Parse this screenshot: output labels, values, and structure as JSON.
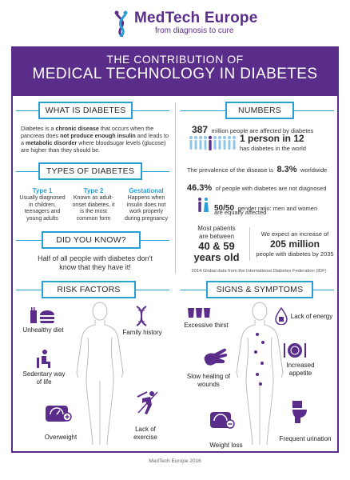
{
  "logo": {
    "name": "MedTech Europe",
    "tagline": "from diagnosis to cure"
  },
  "banner": {
    "line1": "THE CONTRIBUTION OF",
    "line2": "MEDICAL TECHNOLOGY IN DIABETES"
  },
  "what": {
    "heading": "WHAT IS DIABETES",
    "text": "Diabetes is a chronic disease that occurs when the pancreas does not produce enough insulin and leads to a metabolic disorder where bloodsugar levels (glucose) are higher than they should be."
  },
  "types": {
    "heading": "TYPES OF DIABETES",
    "items": [
      {
        "title": "Type 1",
        "desc": "Usually diagnosed in children, teenagers and young adults"
      },
      {
        "title": "Type 2",
        "desc": "Known as adult-onset diabetes, it is the most common form"
      },
      {
        "title": "Gestational",
        "desc": "Happens when insulin does not work properly during pregnancy"
      }
    ]
  },
  "know": {
    "heading": "DID YOU KNOW?",
    "text": "Half of all people with diabetes don't know that they have it!"
  },
  "numbers": {
    "heading": "NUMBERS",
    "n1_big": "387",
    "n1_text": "million people are affected by diabetes",
    "n2_big": "1 person in 12",
    "n2_text": "has diabetes in the world",
    "n3_pre": "The prevalence of the disease is",
    "n3_big": "8.3%",
    "n3_post": "worldwide",
    "n4_big": "46.3%",
    "n4_text": "of people with diabetes are not diagnosed",
    "n5_big": "50/50",
    "n5_text1": "gender ratio: men and women",
    "n5_text2": "are equally affected",
    "n6_l1": "Most patients",
    "n6_l2": "are between",
    "n6_big1": "40 & 59",
    "n6_big2": "years old",
    "n7_l1": "We expect an increase of",
    "n7_big": "205 million",
    "n7_l2": "people with diabetes by 2035",
    "source": "2014 Global data from the International Diabetes Federation (IDF)"
  },
  "risk": {
    "heading": "RISK FACTORS",
    "items": [
      "Unhealthy diet",
      "Family history",
      "Sedentary way of life",
      "Overweight",
      "Lack of exercise"
    ]
  },
  "signs": {
    "heading": "SIGNS & SYMPTOMS",
    "items": [
      "Excessive thirst",
      "Lack of energy",
      "Slow healing of wounds",
      "Increased appetite",
      "Weight loss",
      "Frequent urination"
    ]
  },
  "footer": "MedTech Europe 2016",
  "colors": {
    "purple": "#5a2d8a",
    "blue": "#2a9fd6"
  }
}
